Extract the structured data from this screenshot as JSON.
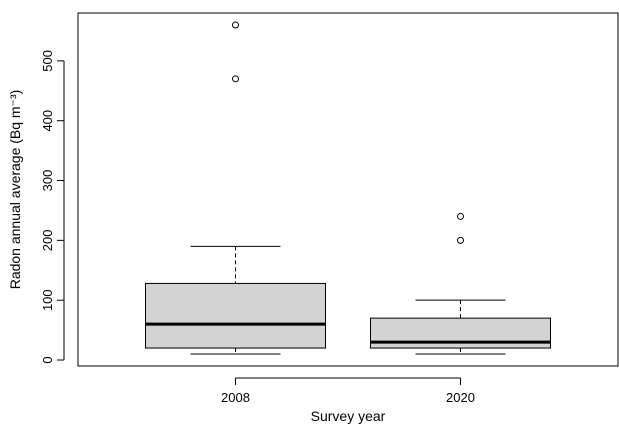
{
  "chart_data": {
    "type": "boxplot",
    "title": "",
    "xlabel": "Survey year",
    "ylabel": "Radon annual average (Bq m⁻³)",
    "ylim": [
      -10,
      580
    ],
    "y_ticks": [
      0,
      100,
      200,
      300,
      400,
      500
    ],
    "grid": false,
    "categories": [
      "2008",
      "2020"
    ],
    "boxes": [
      {
        "category": "2008",
        "whisker_low": 10,
        "q1": 20,
        "median": 60,
        "q3": 128,
        "whisker_high": 190,
        "outliers": [
          470,
          560
        ]
      },
      {
        "category": "2020",
        "whisker_low": 10,
        "q1": 20,
        "median": 30,
        "q3": 70,
        "whisker_high": 100,
        "outliers": [
          200,
          240
        ]
      }
    ],
    "box_fill": "#d3d3d3"
  }
}
